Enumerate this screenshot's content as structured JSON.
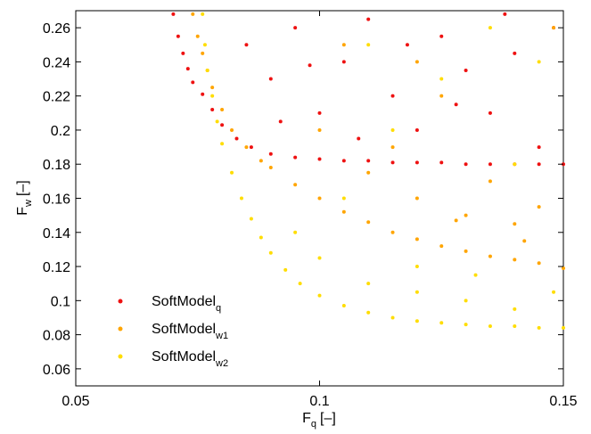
{
  "chart_data": {
    "type": "scatter",
    "xlabel": {
      "base": "F",
      "sub": "q",
      "unit": "[–]"
    },
    "ylabel": {
      "base": "F",
      "sub": "w",
      "unit": "[–]"
    },
    "xlim": [
      0.05,
      0.15
    ],
    "xticks": [
      0.05,
      0.1,
      0.15
    ],
    "ylim": [
      0.05,
      0.27
    ],
    "yticks": [
      0.06,
      0.08,
      0.1,
      0.12,
      0.14,
      0.16,
      0.18,
      0.2,
      0.22,
      0.24,
      0.26
    ],
    "legend": "lower left",
    "series": [
      {
        "name": "SoftModel",
        "sub": "q",
        "color": "#ee1111",
        "x": [
          0.07,
          0.071,
          0.072,
          0.073,
          0.074,
          0.076,
          0.078,
          0.08,
          0.083,
          0.086,
          0.09,
          0.095,
          0.1,
          0.105,
          0.11,
          0.115,
          0.12,
          0.125,
          0.13,
          0.135,
          0.14,
          0.145,
          0.15,
          0.085,
          0.09,
          0.095,
          0.1,
          0.105,
          0.11,
          0.115,
          0.12,
          0.125,
          0.13,
          0.135,
          0.14,
          0.145,
          0.148,
          0.092,
          0.108,
          0.118,
          0.138,
          0.128,
          0.098
        ],
        "values": [
          0.268,
          0.255,
          0.245,
          0.236,
          0.228,
          0.221,
          0.212,
          0.203,
          0.195,
          0.19,
          0.186,
          0.184,
          0.183,
          0.182,
          0.182,
          0.181,
          0.181,
          0.181,
          0.18,
          0.18,
          0.18,
          0.18,
          0.18,
          0.25,
          0.23,
          0.26,
          0.21,
          0.24,
          0.265,
          0.22,
          0.2,
          0.255,
          0.235,
          0.21,
          0.245,
          0.19,
          0.26,
          0.205,
          0.195,
          0.25,
          0.268,
          0.215,
          0.238
        ]
      },
      {
        "name": "SoftModel",
        "sub": "w1",
        "color": "#ffa500",
        "x": [
          0.074,
          0.075,
          0.076,
          0.077,
          0.078,
          0.08,
          0.082,
          0.085,
          0.088,
          0.09,
          0.095,
          0.1,
          0.105,
          0.11,
          0.115,
          0.12,
          0.125,
          0.13,
          0.135,
          0.14,
          0.145,
          0.15,
          0.1,
          0.11,
          0.12,
          0.13,
          0.14,
          0.125,
          0.115,
          0.135,
          0.145,
          0.105,
          0.148,
          0.12,
          0.128,
          0.142
        ],
        "values": [
          0.268,
          0.255,
          0.245,
          0.235,
          0.225,
          0.212,
          0.2,
          0.19,
          0.182,
          0.178,
          0.168,
          0.16,
          0.152,
          0.146,
          0.14,
          0.136,
          0.132,
          0.129,
          0.126,
          0.124,
          0.122,
          0.119,
          0.2,
          0.175,
          0.16,
          0.15,
          0.145,
          0.22,
          0.19,
          0.17,
          0.155,
          0.25,
          0.26,
          0.24,
          0.147,
          0.135
        ]
      },
      {
        "name": "SoftModel",
        "sub": "w2",
        "color": "#ffdd00",
        "x": [
          0.076,
          0.0765,
          0.077,
          0.078,
          0.079,
          0.08,
          0.082,
          0.084,
          0.086,
          0.088,
          0.09,
          0.093,
          0.096,
          0.1,
          0.105,
          0.11,
          0.115,
          0.12,
          0.125,
          0.13,
          0.135,
          0.14,
          0.145,
          0.15,
          0.095,
          0.1,
          0.11,
          0.12,
          0.13,
          0.14,
          0.148,
          0.105,
          0.115,
          0.125,
          0.135,
          0.145,
          0.11,
          0.14,
          0.12,
          0.132
        ],
        "values": [
          0.268,
          0.25,
          0.235,
          0.22,
          0.205,
          0.192,
          0.175,
          0.16,
          0.148,
          0.137,
          0.128,
          0.118,
          0.11,
          0.103,
          0.097,
          0.093,
          0.09,
          0.088,
          0.087,
          0.086,
          0.085,
          0.085,
          0.084,
          0.084,
          0.14,
          0.125,
          0.11,
          0.105,
          0.1,
          0.095,
          0.105,
          0.16,
          0.2,
          0.23,
          0.26,
          0.24,
          0.25,
          0.18,
          0.12,
          0.115
        ]
      }
    ]
  }
}
